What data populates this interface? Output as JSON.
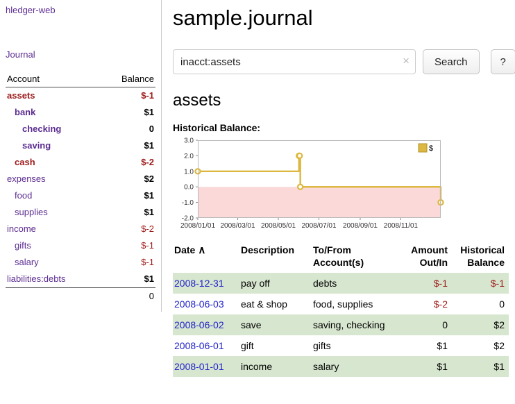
{
  "app": {
    "title": "hledger-web",
    "nav_journal": "Journal"
  },
  "sidebar": {
    "header_account": "Account",
    "header_balance": "Balance",
    "accounts": [
      {
        "name": "assets",
        "balance": "$-1",
        "depth": 0,
        "bold": true,
        "balance_bold": true,
        "name_negative": true,
        "balance_negative": true
      },
      {
        "name": "bank",
        "balance": "$1",
        "depth": 1,
        "bold": true,
        "balance_bold": true,
        "name_negative": false,
        "balance_negative": false
      },
      {
        "name": "checking",
        "balance": "0",
        "depth": 2,
        "bold": true,
        "balance_bold": true,
        "name_negative": false,
        "balance_negative": false
      },
      {
        "name": "saving",
        "balance": "$1",
        "depth": 2,
        "bold": true,
        "balance_bold": true,
        "name_negative": false,
        "balance_negative": false
      },
      {
        "name": "cash",
        "balance": "$-2",
        "depth": 1,
        "bold": true,
        "balance_bold": true,
        "name_negative": true,
        "balance_negative": true
      },
      {
        "name": "expenses",
        "balance": "$2",
        "depth": 0,
        "bold": false,
        "balance_bold": true,
        "name_negative": false,
        "balance_negative": false
      },
      {
        "name": "food",
        "balance": "$1",
        "depth": 1,
        "bold": false,
        "balance_bold": true,
        "name_negative": false,
        "balance_negative": false
      },
      {
        "name": "supplies",
        "balance": "$1",
        "depth": 1,
        "bold": false,
        "balance_bold": true,
        "name_negative": false,
        "balance_negative": false
      },
      {
        "name": "income",
        "balance": "$-2",
        "depth": 0,
        "bold": false,
        "balance_bold": false,
        "name_negative": false,
        "balance_negative": true
      },
      {
        "name": "gifts",
        "balance": "$-1",
        "depth": 1,
        "bold": false,
        "balance_bold": false,
        "name_negative": false,
        "balance_negative": true
      },
      {
        "name": "salary",
        "balance": "$-1",
        "depth": 1,
        "bold": false,
        "balance_bold": false,
        "name_negative": false,
        "balance_negative": true
      },
      {
        "name": "liabilities:debts",
        "balance": "$1",
        "depth": 0,
        "bold": false,
        "balance_bold": true,
        "name_negative": false,
        "balance_negative": false
      }
    ],
    "total": "0"
  },
  "main": {
    "title": "sample.journal",
    "search": {
      "value": "inacct:assets",
      "clear_label": "×",
      "button": "Search",
      "help_button": "?"
    },
    "account_heading": "assets",
    "chart_label": "Historical Balance:"
  },
  "chart_data": {
    "type": "line",
    "step": true,
    "title": "Historical Balance",
    "series": [
      {
        "name": "$",
        "color": "#dcb840",
        "points": [
          [
            "2008-01-01",
            1
          ],
          [
            "2008-06-01",
            2
          ],
          [
            "2008-06-02",
            2
          ],
          [
            "2008-06-03",
            0
          ],
          [
            "2008-12-31",
            -1
          ]
        ]
      }
    ],
    "ylim": [
      -2.0,
      3.0
    ],
    "yticks": [
      3.0,
      2.0,
      1.0,
      0.0,
      -1.0,
      -2.0
    ],
    "xticks": [
      "2008/01/01",
      "2008/03/01",
      "2008/05/01",
      "2008/07/01",
      "2008/09/01",
      "2008/11/01"
    ],
    "negative_region_color": "#fbd9d9",
    "grid": false,
    "legend": [
      {
        "label": "$",
        "color": "#dcb840"
      }
    ],
    "legend_position": "top-right"
  },
  "register": {
    "headers": {
      "date": "Date",
      "sort_icon": "∧",
      "description": "Description",
      "accounts": "To/From Account(s)",
      "amount": "Amount Out/In",
      "balance": "Historical Balance"
    },
    "rows": [
      {
        "date": "2008-12-31",
        "description": "pay off",
        "accounts": "debts",
        "amount": "$-1",
        "amount_negative": true,
        "balance": "$-1",
        "balance_negative": true
      },
      {
        "date": "2008-06-03",
        "description": "eat & shop",
        "accounts": "food, supplies",
        "amount": "$-2",
        "amount_negative": true,
        "balance": "0",
        "balance_negative": false
      },
      {
        "date": "2008-06-02",
        "description": "save",
        "accounts": "saving, checking",
        "amount": "0",
        "amount_negative": false,
        "balance": "$2",
        "balance_negative": false
      },
      {
        "date": "2008-06-01",
        "description": "gift",
        "accounts": "gifts",
        "amount": "$1",
        "amount_negative": false,
        "balance": "$2",
        "balance_negative": false
      },
      {
        "date": "2008-01-01",
        "description": "income",
        "accounts": "salary",
        "amount": "$1",
        "amount_negative": false,
        "balance": "$1",
        "balance_negative": false
      }
    ]
  }
}
